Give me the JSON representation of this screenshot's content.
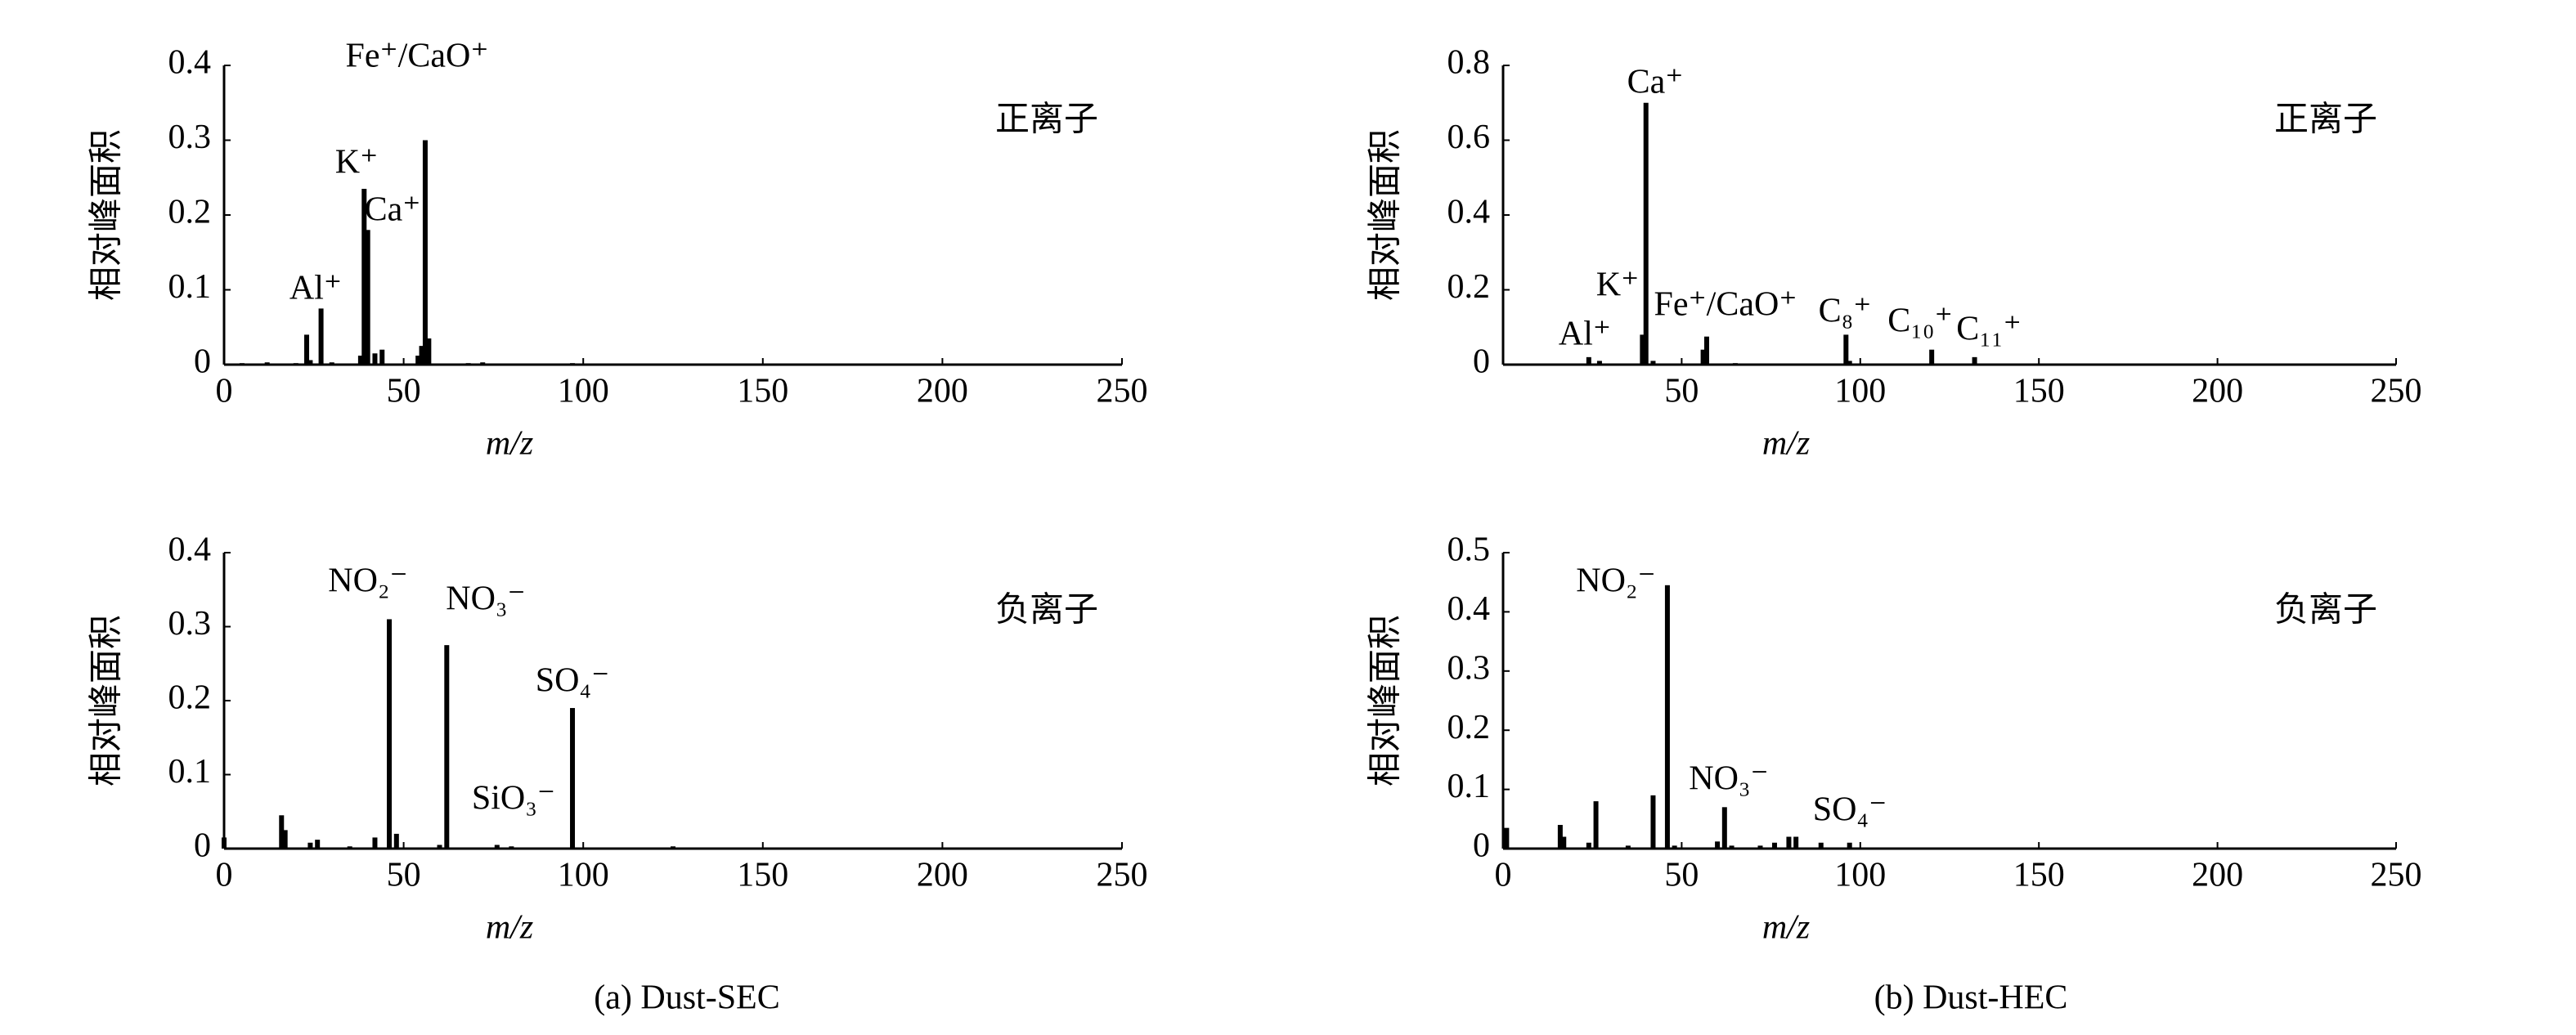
{
  "chart_data": [
    {
      "type": "bar",
      "ion_type": "正离子",
      "ylabel": "相对峰面积",
      "xlabel": "m/z",
      "x": [
        5,
        12,
        20,
        23,
        24,
        27,
        30,
        38,
        39,
        40,
        42,
        44,
        54,
        55,
        56,
        57,
        68,
        72,
        97
      ],
      "values": [
        0.002,
        0.003,
        0.002,
        0.04,
        0.006,
        0.075,
        0.003,
        0.012,
        0.235,
        0.18,
        0.015,
        0.02,
        0.012,
        0.025,
        0.3,
        0.035,
        0.002,
        0.003,
        0.002
      ],
      "color": "#000000",
      "xlim": [
        0,
        250
      ],
      "xticks": [
        0,
        50,
        100,
        150,
        200,
        250
      ],
      "ylim": [
        0,
        0.4
      ],
      "yticks": [
        0,
        0.1,
        0.2,
        0.3,
        0.4
      ],
      "annotations": [
        "Fe⁺/CaO⁺",
        "K⁺",
        "Ca⁺",
        "Al⁺"
      ]
    },
    {
      "type": "bar",
      "ion_type": "正离子",
      "ylabel": "相对峰面积",
      "xlabel": "m/z",
      "x": [
        24,
        27,
        39,
        40,
        42,
        56,
        57,
        65,
        96,
        97,
        120,
        132,
        160
      ],
      "values": [
        0.02,
        0.01,
        0.08,
        0.7,
        0.01,
        0.04,
        0.075,
        0.004,
        0.08,
        0.01,
        0.04,
        0.02,
        0.003
      ],
      "color": "#000000",
      "xlim": [
        0,
        250
      ],
      "xticks": [
        50,
        100,
        150,
        200,
        250
      ],
      "ylim": [
        0,
        0.8
      ],
      "yticks": [
        0,
        0.2,
        0.4,
        0.6,
        0.8
      ],
      "annotations": [
        "Ca⁺",
        "K⁺",
        "Al⁺",
        "Fe⁺/CaO⁺",
        "C₈⁺",
        "C₁₀⁺",
        "C₁₁⁺"
      ]
    },
    {
      "type": "bar",
      "ion_type": "负离子",
      "ylabel": "相对峰面积",
      "xlabel": "m/z",
      "x": [
        0,
        16,
        17,
        24,
        26,
        35,
        42,
        46,
        48,
        60,
        62,
        76,
        80,
        97,
        125
      ],
      "values": [
        0.015,
        0.045,
        0.025,
        0.008,
        0.012,
        0.003,
        0.015,
        0.31,
        0.02,
        0.005,
        0.275,
        0.005,
        0.003,
        0.19,
        0.003
      ],
      "color": "#000000",
      "xlim": [
        0,
        250
      ],
      "xticks": [
        0,
        50,
        100,
        150,
        200,
        250
      ],
      "ylim": [
        0,
        0.4
      ],
      "yticks": [
        0,
        0.1,
        0.2,
        0.3,
        0.4
      ],
      "annotations": [
        "NO₂⁻",
        "NO₃⁻",
        "SO₄⁻",
        "SiO₃⁻"
      ]
    },
    {
      "type": "bar",
      "ion_type": "负离子",
      "ylabel": "相对峰面积",
      "xlabel": "m/z",
      "x": [
        1,
        16,
        17,
        24,
        26,
        35,
        42,
        46,
        48,
        60,
        62,
        64,
        72,
        76,
        80,
        82,
        89,
        97
      ],
      "values": [
        0.035,
        0.04,
        0.02,
        0.01,
        0.08,
        0.005,
        0.09,
        0.445,
        0.005,
        0.012,
        0.07,
        0.005,
        0.005,
        0.01,
        0.02,
        0.02,
        0.01,
        0.01
      ],
      "color": "#000000",
      "xlim": [
        0,
        250
      ],
      "xticks": [
        0,
        50,
        100,
        150,
        200,
        250
      ],
      "ylim": [
        0,
        0.5
      ],
      "yticks": [
        0,
        0.1,
        0.2,
        0.3,
        0.4,
        0.5
      ],
      "annotations": [
        "NO₂⁻",
        "NO₃⁻",
        "SO₄⁻"
      ]
    }
  ],
  "captions": [
    "(a) Dust-SEC",
    "(b) Dust-HEC"
  ]
}
